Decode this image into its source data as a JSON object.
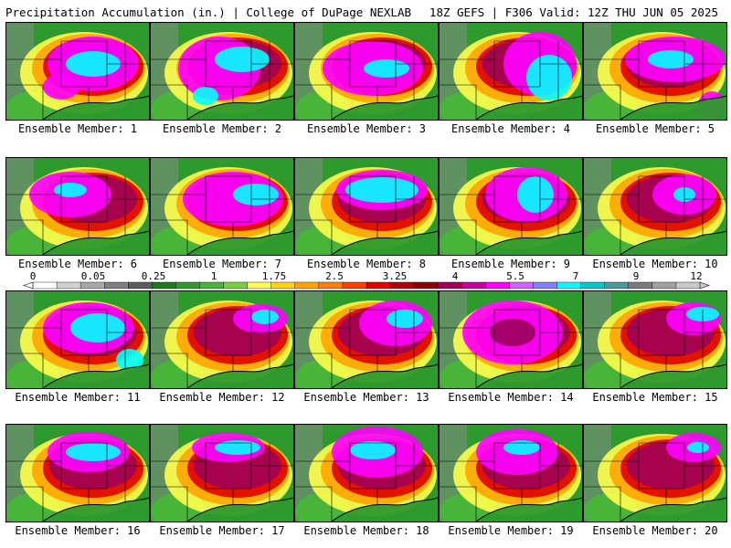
{
  "header": {
    "title": "Precipitation Accumulation (in.) | College of DuPage NEXLAB",
    "run_info": "18Z GEFS | F306 Valid: 12Z THU JUN 05 2025"
  },
  "colorbar": {
    "tick_labels": [
      "0",
      "0.05",
      "0.25",
      "1",
      "1.75",
      "2.5",
      "3.25",
      "4",
      "5.5",
      "7",
      "9",
      "12"
    ],
    "colors": [
      "#ffffff",
      "#d0d0d0",
      "#a8a8a8",
      "#808080",
      "#5c5c5c",
      "#1e7a1e",
      "#2e9a2e",
      "#49b43a",
      "#78d040",
      "#ffff4d",
      "#ffd700",
      "#ffa500",
      "#ff7f00",
      "#ff4000",
      "#e00000",
      "#b00000",
      "#880000",
      "#9b005b",
      "#c8009b",
      "#ff00ff",
      "#cc66ff",
      "#8080ff",
      "#00ffff",
      "#00c8c8",
      "#4a9a9a",
      "#7a7a7a",
      "#a0a0a0",
      "#c8c8c8"
    ]
  },
  "members": [
    {
      "label": "Ensemble Member: 1"
    },
    {
      "label": "Ensemble Member: 2"
    },
    {
      "label": "Ensemble Member: 3"
    },
    {
      "label": "Ensemble Member: 4"
    },
    {
      "label": "Ensemble Member: 5"
    },
    {
      "label": "Ensemble Member: 6"
    },
    {
      "label": "Ensemble Member: 7"
    },
    {
      "label": "Ensemble Member: 8"
    },
    {
      "label": "Ensemble Member: 9"
    },
    {
      "label": "Ensemble Member: 10"
    },
    {
      "label": "Ensemble Member: 11"
    },
    {
      "label": "Ensemble Member: 12"
    },
    {
      "label": "Ensemble Member: 13"
    },
    {
      "label": "Ensemble Member: 14"
    },
    {
      "label": "Ensemble Member: 15"
    },
    {
      "label": "Ensemble Member: 16"
    },
    {
      "label": "Ensemble Member: 17"
    },
    {
      "label": "Ensemble Member: 18"
    },
    {
      "label": "Ensemble Member: 19"
    },
    {
      "label": "Ensemble Member: 20"
    }
  ]
}
